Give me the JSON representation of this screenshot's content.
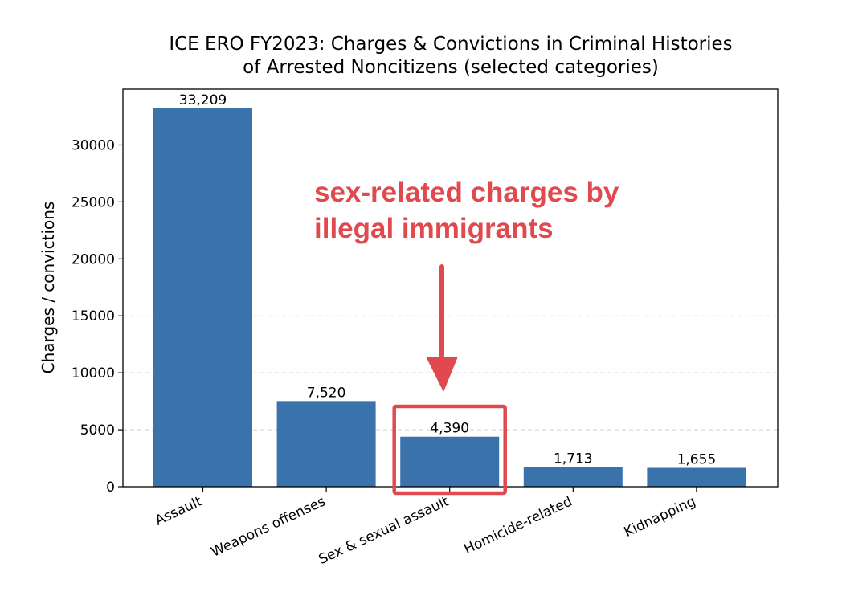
{
  "chart_data": {
    "type": "bar",
    "title": [
      "ICE ERO FY2023: Charges & Convictions in Criminal Histories",
      "of Arrested Noncitizens (selected categories)"
    ],
    "xlabel": "",
    "ylabel": "Charges / convictions",
    "categories": [
      "Assault",
      "Weapons offenses",
      "Sex & sexual assault",
      "Homicide-related",
      "Kidnapping"
    ],
    "values": [
      33209,
      7520,
      4390,
      1713,
      1655
    ],
    "data_labels": [
      "33,209",
      "7,520",
      "4,390",
      "1,713",
      "1,655"
    ],
    "ylim": [
      0,
      34900
    ],
    "yticks": [
      0,
      5000,
      10000,
      15000,
      20000,
      25000,
      30000
    ],
    "ytick_labels": [
      "0",
      "5000",
      "10000",
      "15000",
      "20000",
      "25000",
      "30000"
    ],
    "grid": "y-dashed",
    "bar_color": "#3a72ab",
    "annotation": {
      "text": [
        "sex-related charges by",
        "illegal immigrants"
      ],
      "color": "#e04a4f",
      "highlighted_category": "Sex & sexual assault"
    }
  }
}
